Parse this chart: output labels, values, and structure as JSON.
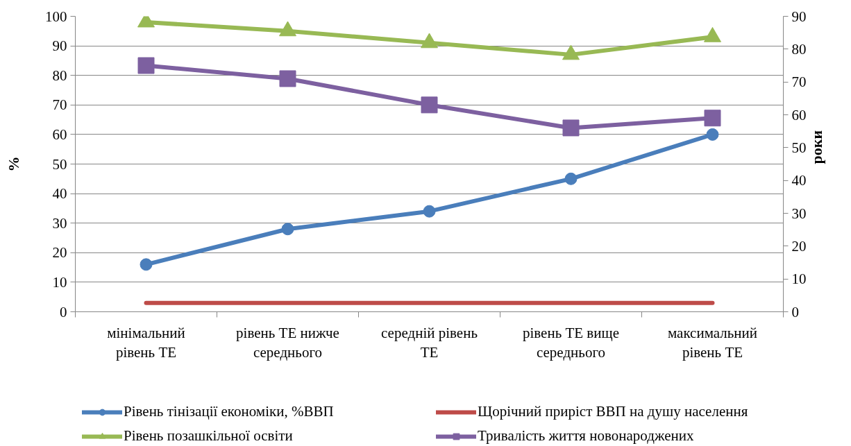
{
  "chart_data": {
    "type": "line",
    "categories": [
      "мінімальний рівень ТЕ",
      "рівень ТЕ нижче середнього",
      "середній рівень ТЕ",
      "рівень ТЕ вище середнього",
      "максимальний рівень ТЕ"
    ],
    "ylabel": "%",
    "y2label": "роки",
    "ylim": [
      0,
      100
    ],
    "yticks": [
      0,
      10,
      20,
      30,
      40,
      50,
      60,
      70,
      80,
      90,
      100
    ],
    "y2lim": [
      0,
      90
    ],
    "y2ticks": [
      0,
      10,
      20,
      30,
      40,
      50,
      60,
      70,
      80,
      90
    ],
    "grid": "y",
    "legend": "bottom",
    "series": [
      {
        "name": "Рівень тінізації економіки, %ВВП",
        "color": "#4a7ebb",
        "marker": "circle",
        "values": [
          16,
          28,
          34,
          45,
          60
        ]
      },
      {
        "name": "Щорічний приріст ВВП на душу населення",
        "color": "#be4b48",
        "marker": "none",
        "values": [
          3,
          3,
          3,
          3,
          3
        ]
      },
      {
        "name": "Рівень позашкільної освіти",
        "color": "#98b954",
        "marker": "triangle",
        "values": [
          98,
          95,
          91,
          87,
          93
        ]
      },
      {
        "name": "Тривалість життя новонароджених",
        "color": "#7d60a0",
        "marker": "square",
        "axis": "y2",
        "values": [
          75,
          71,
          63,
          56,
          59
        ]
      }
    ]
  }
}
